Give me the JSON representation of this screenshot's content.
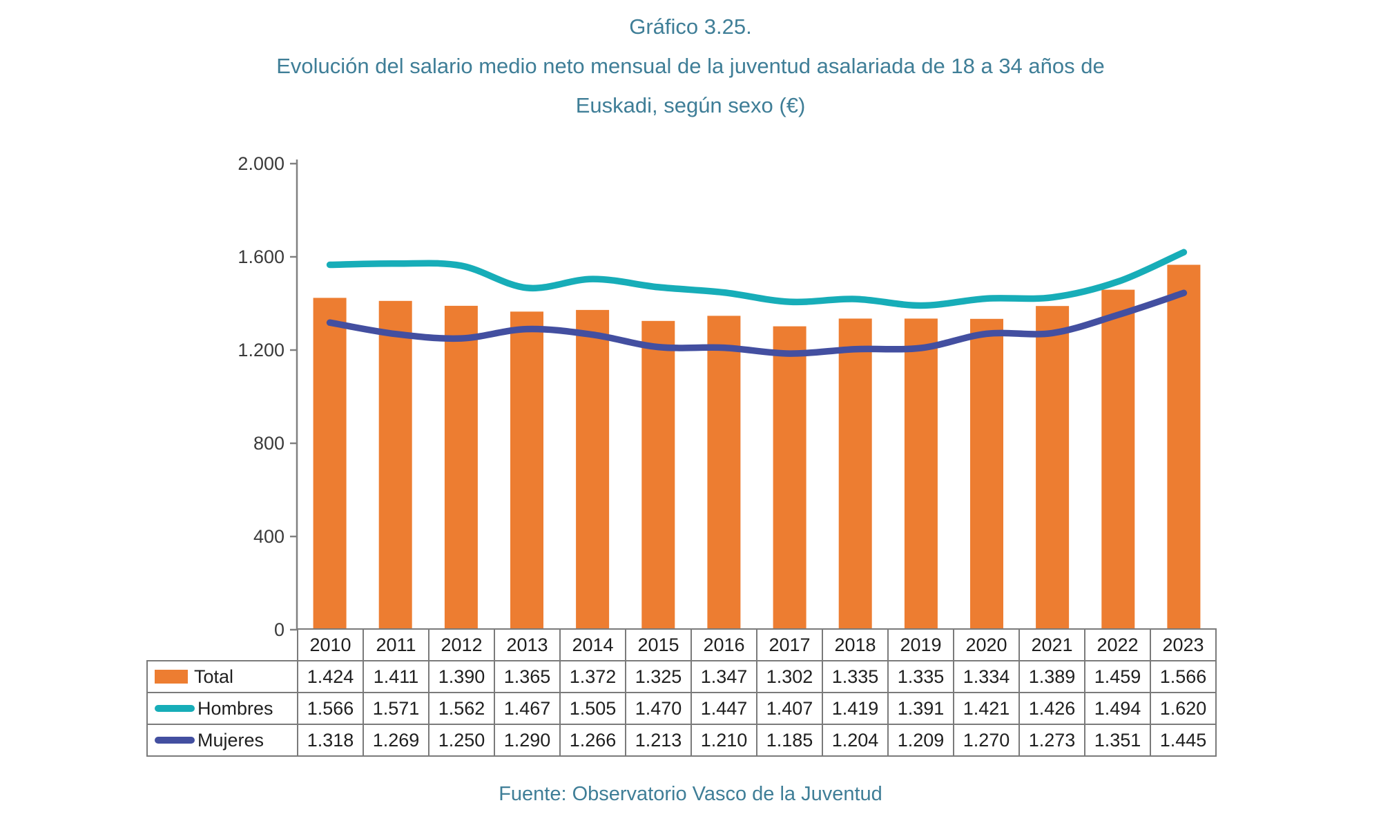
{
  "title": {
    "number": "Gráfico 3.25.",
    "line1": "Evolución del salario medio neto mensual de la juventud asalariada de 18 a 34 años de",
    "line2": "Euskadi, según sexo (€)"
  },
  "source": "Fuente: Observatorio Vasco de la Juventud",
  "palette": {
    "title_text": "#3F7E97",
    "table_border": "#7a7a7a",
    "axis": "#808080",
    "body_text": "#1f1f1f",
    "bar_orange": "#ED7D31",
    "line_teal": "#17ADB8",
    "line_indigo": "#434FA0"
  },
  "chart_data": {
    "type": "combo-bar-line",
    "title": "Gráfico 3.25. Evolución del salario medio neto mensual de la juventud asalariada de 18 a 34 años de Euskadi, según sexo (€)",
    "categories": [
      "2010",
      "2011",
      "2012",
      "2013",
      "2014",
      "2015",
      "2016",
      "2017",
      "2018",
      "2019",
      "2020",
      "2021",
      "2022",
      "2023"
    ],
    "series": [
      {
        "name": "Total",
        "type": "bar",
        "color": "#ED7D31",
        "values": [
          1424,
          1411,
          1390,
          1365,
          1372,
          1325,
          1347,
          1302,
          1335,
          1335,
          1334,
          1389,
          1459,
          1566
        ],
        "display": [
          "1.424",
          "1.411",
          "1.390",
          "1.365",
          "1.372",
          "1.325",
          "1.347",
          "1.302",
          "1.335",
          "1.335",
          "1.334",
          "1.389",
          "1.459",
          "1.566"
        ]
      },
      {
        "name": "Hombres",
        "type": "line",
        "color": "#17ADB8",
        "values": [
          1566,
          1571,
          1562,
          1467,
          1505,
          1470,
          1447,
          1407,
          1419,
          1391,
          1421,
          1426,
          1494,
          1620
        ],
        "display": [
          "1.566",
          "1.571",
          "1.562",
          "1.467",
          "1.505",
          "1.470",
          "1.447",
          "1.407",
          "1.419",
          "1.391",
          "1.421",
          "1.426",
          "1.494",
          "1.620"
        ]
      },
      {
        "name": "Mujeres",
        "type": "line",
        "color": "#434FA0",
        "values": [
          1318,
          1269,
          1250,
          1290,
          1266,
          1213,
          1210,
          1185,
          1204,
          1209,
          1270,
          1273,
          1351,
          1445
        ],
        "display": [
          "1.318",
          "1.269",
          "1.250",
          "1.290",
          "1.266",
          "1.213",
          "1.210",
          "1.185",
          "1.204",
          "1.209",
          "1.270",
          "1.273",
          "1.351",
          "1.445"
        ]
      }
    ],
    "xlabel": "",
    "ylabel": "",
    "ylim": [
      0,
      2000
    ],
    "yticks": [
      0,
      400,
      800,
      1200,
      1600,
      2000
    ],
    "ytick_labels": [
      "0",
      "400",
      "800",
      "1.200",
      "1.600",
      "2.000"
    ],
    "grid": false,
    "legend_position": "table-left-column"
  }
}
